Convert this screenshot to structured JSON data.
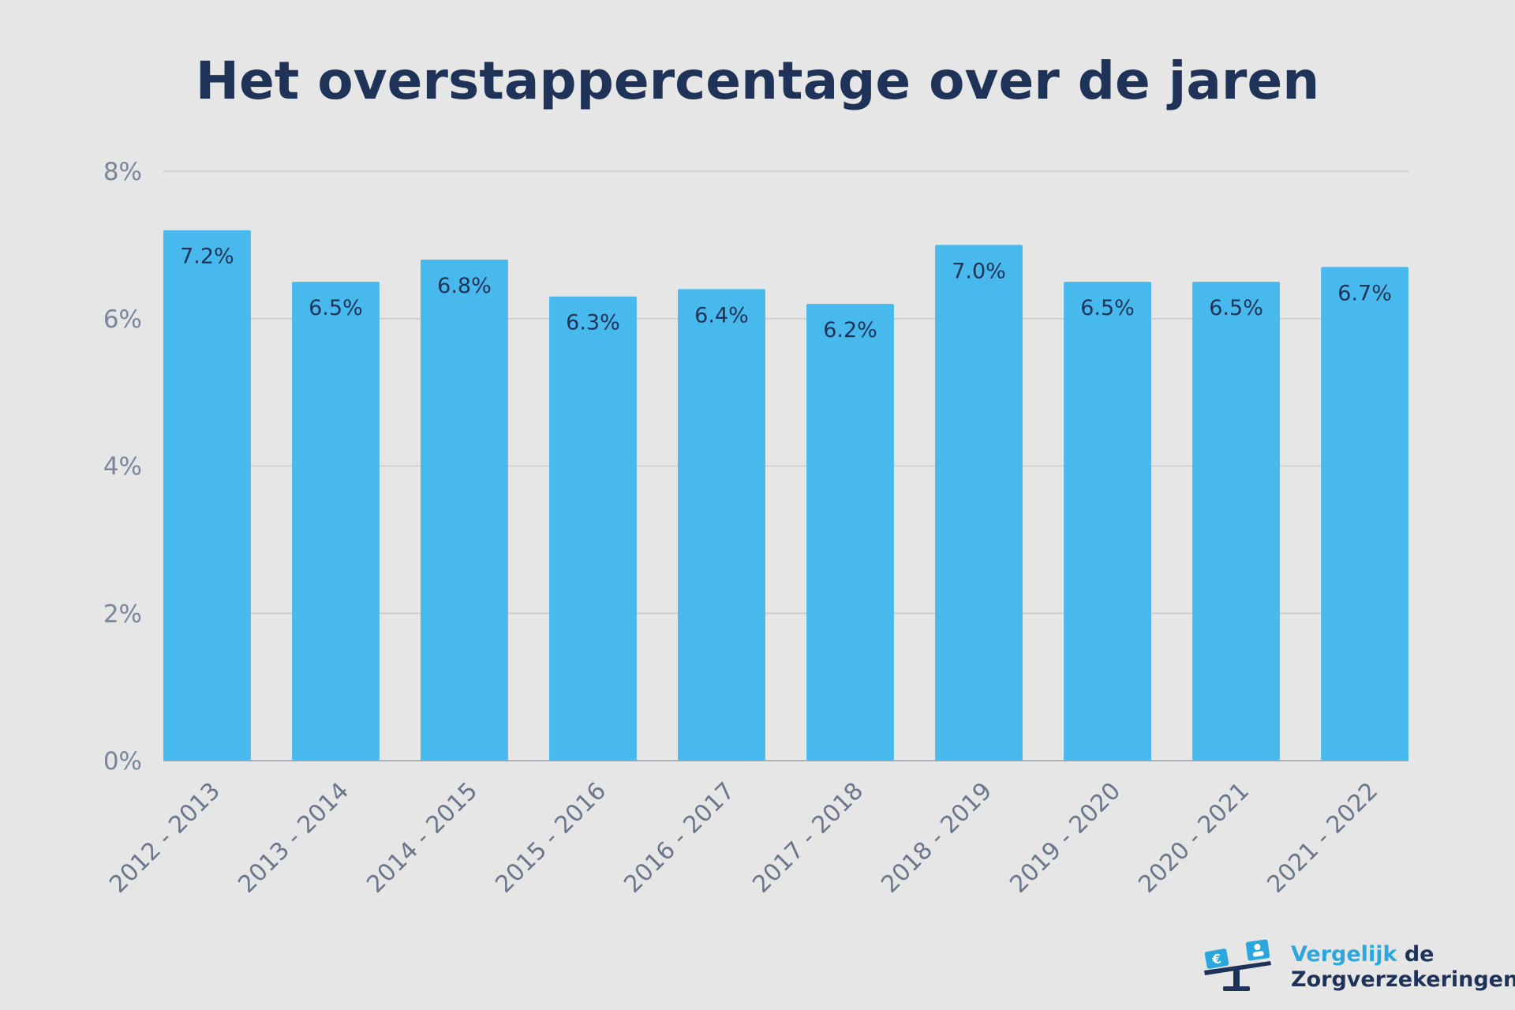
{
  "chart_data": {
    "type": "bar",
    "title": "Het overstappercentage over de jaren",
    "xlabel": "",
    "ylabel": "",
    "categories": [
      "2012 - 2013",
      "2013 - 2014",
      "2014 - 2015",
      "2015 - 2016",
      "2016 - 2017",
      "2017 - 2018",
      "2018 - 2019",
      "2019 - 2020",
      "2020 - 2021",
      "2021 - 2022"
    ],
    "values": [
      7.2,
      6.5,
      6.8,
      6.3,
      6.4,
      6.2,
      7.0,
      6.5,
      6.5,
      6.7
    ],
    "data_labels": [
      "7.2%",
      "6.5%",
      "6.8%",
      "6.3%",
      "6.4%",
      "6.2%",
      "7.0%",
      "6.5%",
      "6.5%",
      "6.7%"
    ],
    "ylim": [
      0,
      8
    ],
    "yticks": [
      0,
      2,
      4,
      6,
      8
    ],
    "ytick_labels": [
      "0%",
      "2%",
      "4%",
      "6%",
      "8%"
    ],
    "grid": true,
    "legend": "none",
    "colors": {
      "bar": "#47b9ec",
      "title": "#1f3358",
      "background": "#e6e6e6"
    }
  },
  "logo": {
    "line1_a": "Vergelijk",
    "line1_b": "de",
    "line2": "Zorgverzekeringen",
    "icon": "balance-scale-icon"
  }
}
